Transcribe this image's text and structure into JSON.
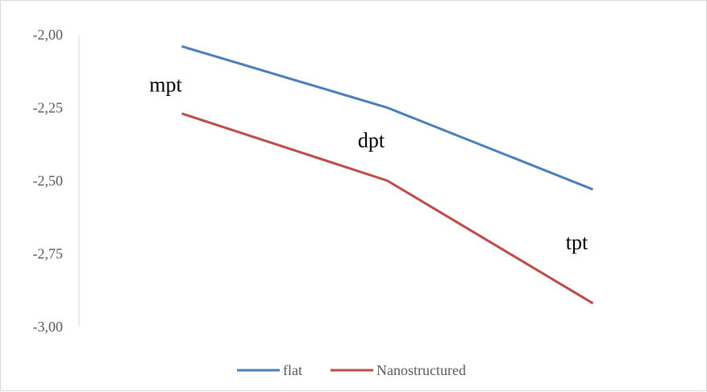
{
  "chart_data": {
    "type": "line",
    "categories": [
      "mpt",
      "dpt",
      "tpt"
    ],
    "series": [
      {
        "name": "flat",
        "values": [
          -2.04,
          -2.25,
          -2.53
        ],
        "color": "#4a7ebb"
      },
      {
        "name": "Nanostructured",
        "values": [
          -2.27,
          -2.5,
          -2.92
        ],
        "color": "#be4b48"
      }
    ],
    "ylim": [
      -3.0,
      -2.0
    ],
    "yticks": [
      "-2,00",
      "-2,25",
      "-2,50",
      "-2,75",
      "-3,00"
    ],
    "ytick_values": [
      -2.0,
      -2.25,
      -2.5,
      -2.75,
      -3.0
    ],
    "annotations": [
      {
        "text": "mpt",
        "category": "mpt",
        "y": -2.17
      },
      {
        "text": "dpt",
        "category": "dpt",
        "y": -2.36
      },
      {
        "text": "tpt",
        "category": "tpt",
        "y": -2.71
      }
    ],
    "legend_position": "bottom",
    "grid": false,
    "axis_color": "#d9d9d9"
  }
}
